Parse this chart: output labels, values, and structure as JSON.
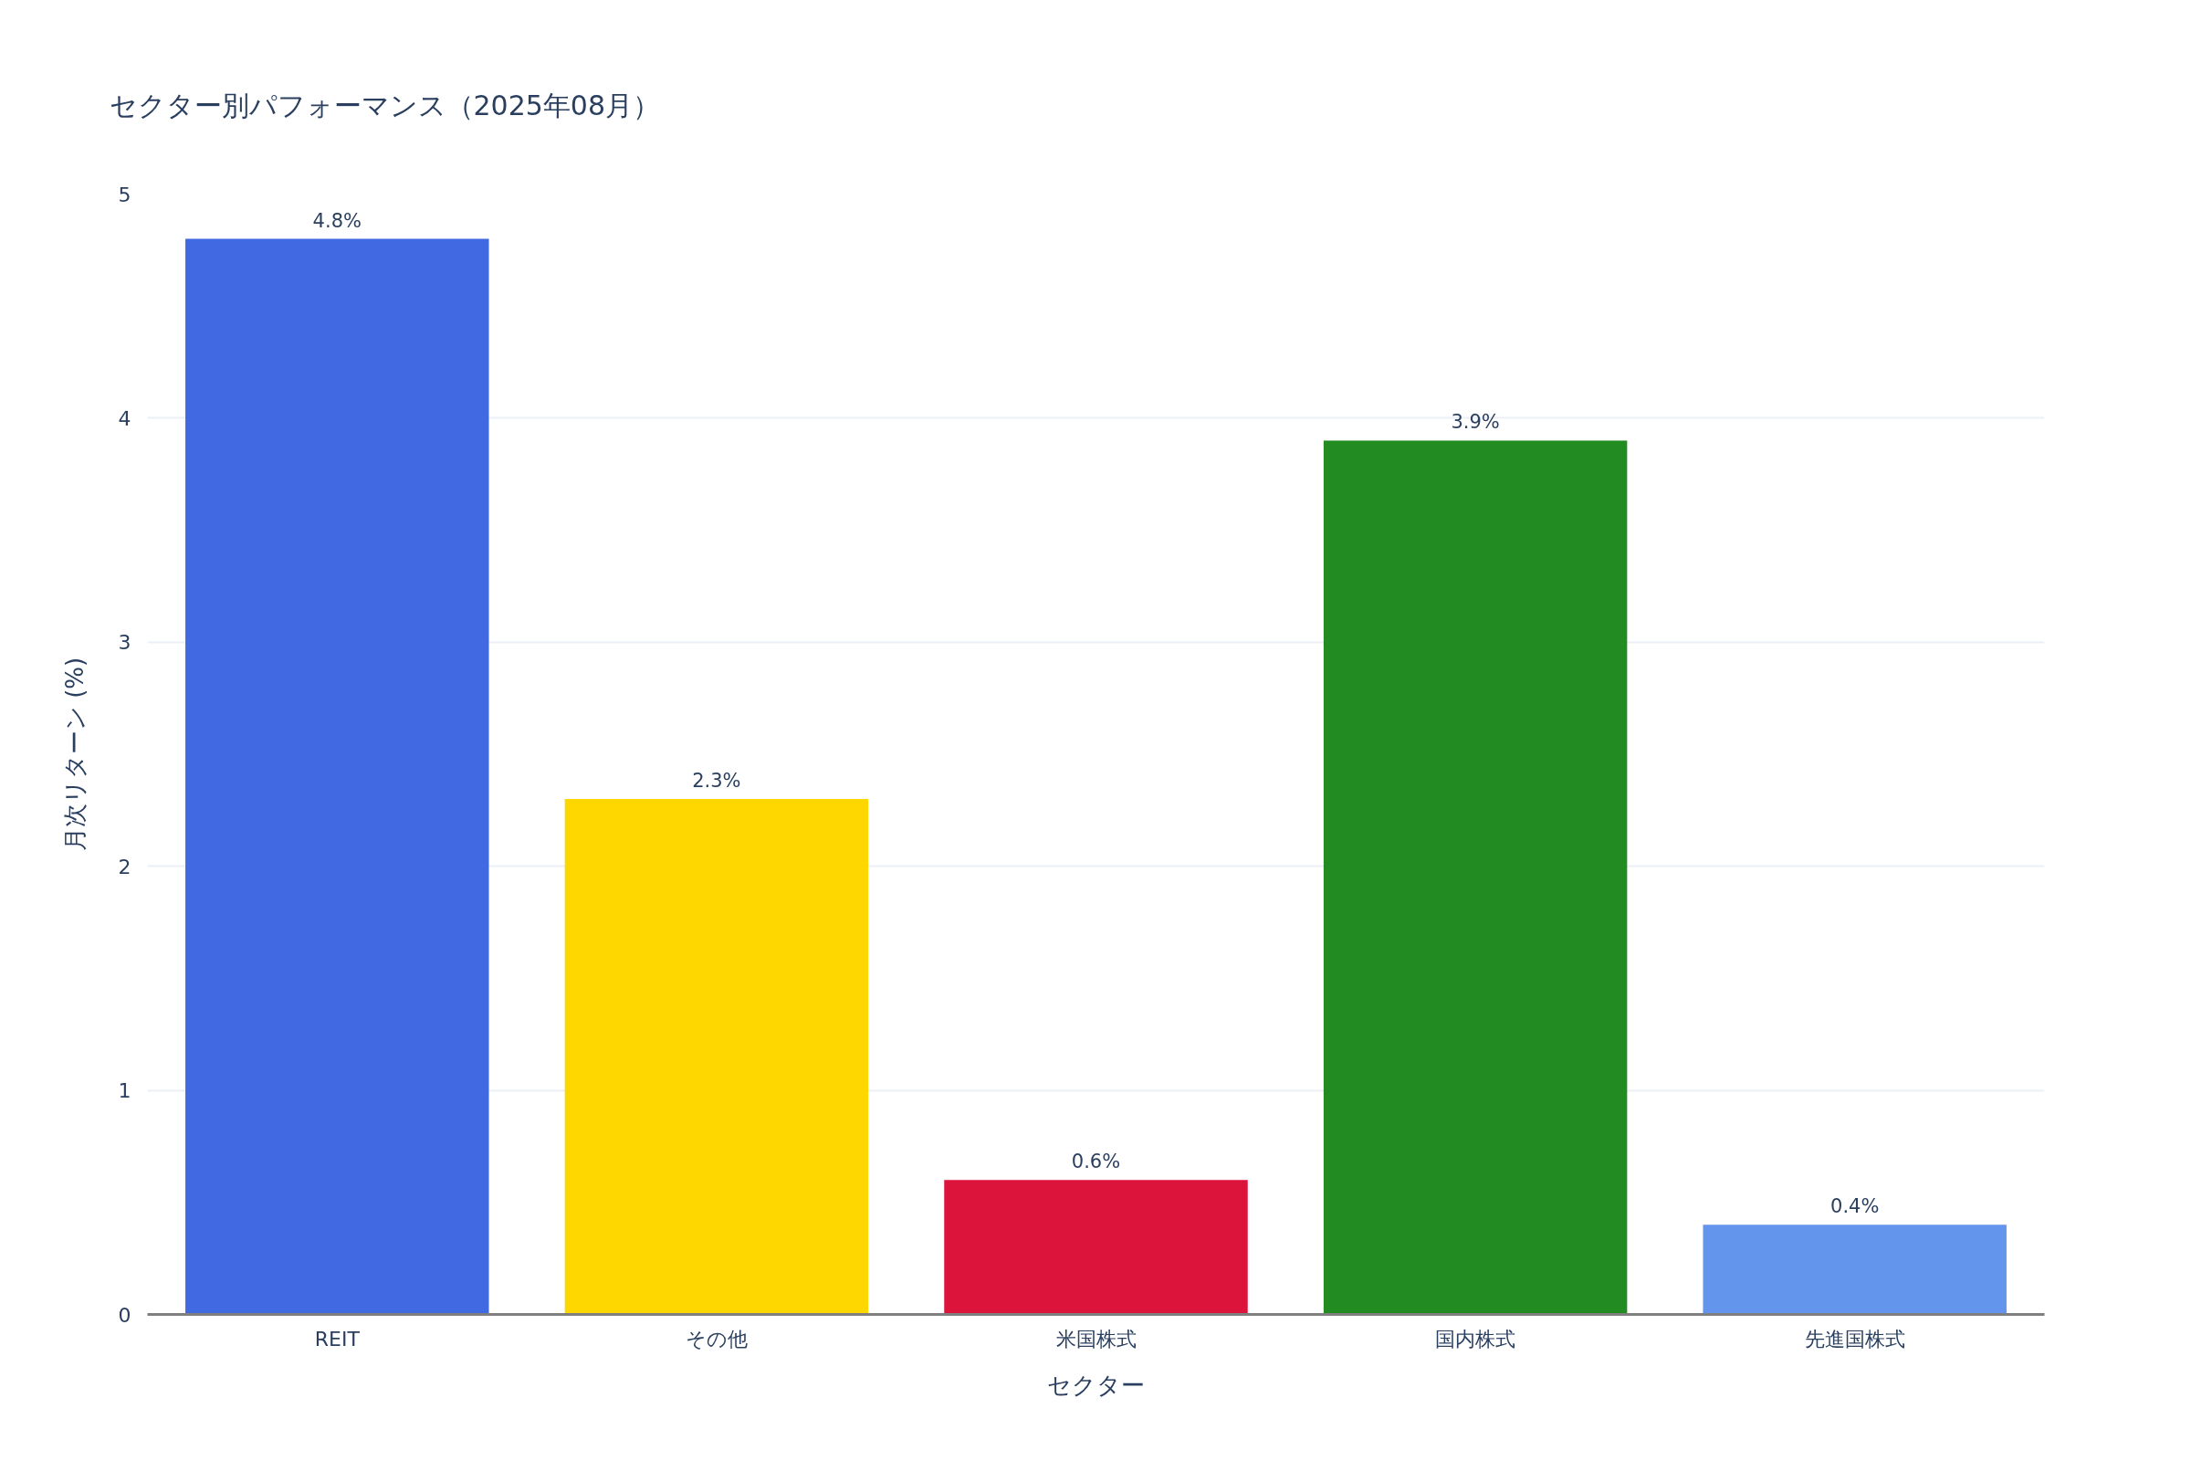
{
  "chart_data": {
    "type": "bar",
    "title": "セクター別パフォーマンス（2025年08月）",
    "xlabel": "セクター",
    "ylabel": "月次リターン (%)",
    "categories": [
      "REIT",
      "その他",
      "米国株式",
      "国内株式",
      "先進国株式"
    ],
    "values": [
      4.8,
      2.3,
      0.6,
      3.9,
      0.4
    ],
    "colors": [
      "#4169e1",
      "#ffd700",
      "#dc143c",
      "#228b22",
      "#6495ed"
    ],
    "value_labels": [
      "4.8%",
      "2.3%",
      "0.6%",
      "3.9%",
      "0.4%"
    ],
    "ylim": [
      0,
      5
    ],
    "yticks": [
      0,
      1,
      2,
      3,
      4,
      5
    ],
    "grid": "y"
  }
}
